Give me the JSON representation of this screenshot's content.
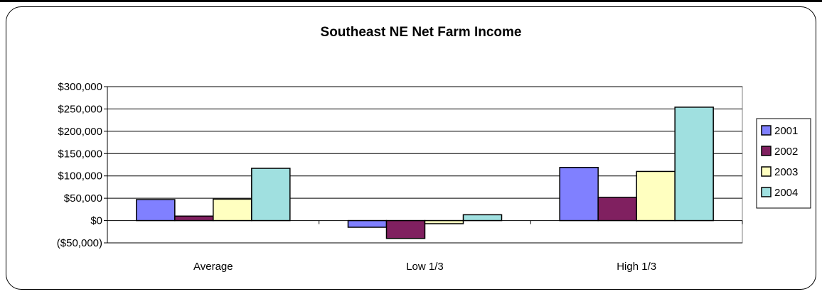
{
  "chart_data": {
    "type": "bar",
    "title": "Southeast NE Net Farm Income",
    "xlabel": "",
    "ylabel": "",
    "categories": [
      "Average",
      "Low 1/3",
      "High 1/3"
    ],
    "series": [
      {
        "name": "2001",
        "color": "#8080ff",
        "values": [
          47000,
          -15000,
          119000
        ]
      },
      {
        "name": "2002",
        "color": "#802060",
        "values": [
          10000,
          -40000,
          52000
        ]
      },
      {
        "name": "2003",
        "color": "#ffffc0",
        "values": [
          48000,
          -7000,
          110000
        ]
      },
      {
        "name": "2004",
        "color": "#a0e0e0",
        "values": [
          117000,
          13000,
          254000
        ]
      }
    ],
    "ylim": [
      -50000,
      300000
    ],
    "yticks": [
      300000,
      250000,
      200000,
      150000,
      100000,
      50000,
      0,
      -50000
    ],
    "ytick_labels": [
      "$300,000",
      "$250,000",
      "$200,000",
      "$150,000",
      "$100,000",
      "$50,000",
      "$0",
      "($50,000)"
    ],
    "grid": true,
    "legend_position": "right"
  }
}
